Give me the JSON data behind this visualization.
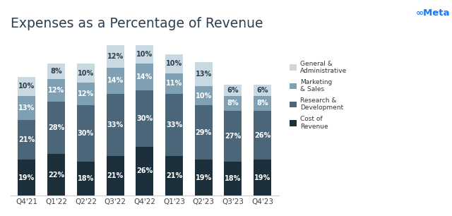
{
  "categories": [
    "Q4'21",
    "Q1'22",
    "Q2'22",
    "Q3'22",
    "Q4'22",
    "Q1'23",
    "Q2'23",
    "Q3'23",
    "Q4'23"
  ],
  "cost_of_revenue": [
    19,
    22,
    18,
    21,
    26,
    21,
    19,
    18,
    19
  ],
  "research_development": [
    21,
    28,
    30,
    33,
    30,
    33,
    29,
    27,
    26
  ],
  "marketing_sales": [
    13,
    12,
    12,
    14,
    14,
    11,
    10,
    8,
    8
  ],
  "general_admin": [
    10,
    8,
    10,
    12,
    10,
    10,
    13,
    6,
    6
  ],
  "colors": {
    "cost_of_revenue": "#1d2f3b",
    "research_development": "#4b6678",
    "marketing_sales": "#7fa0b2",
    "general_admin": "#c8d9e2"
  },
  "title": "Expenses as a Percentage of Revenue",
  "title_fontsize": 13.5,
  "tick_fontsize": 7.5,
  "label_fontsize": 7,
  "bar_width": 0.6,
  "background_color": "#ffffff",
  "ylim": [
    0,
    85
  ],
  "legend_labels": [
    "General &\nAdministrative",
    "Marketing\n& Sales",
    "Research &\nDevelopment",
    "Cost of\nRevenue"
  ],
  "meta_logo_color": "#1877F2",
  "title_color": "#2d3e4e"
}
